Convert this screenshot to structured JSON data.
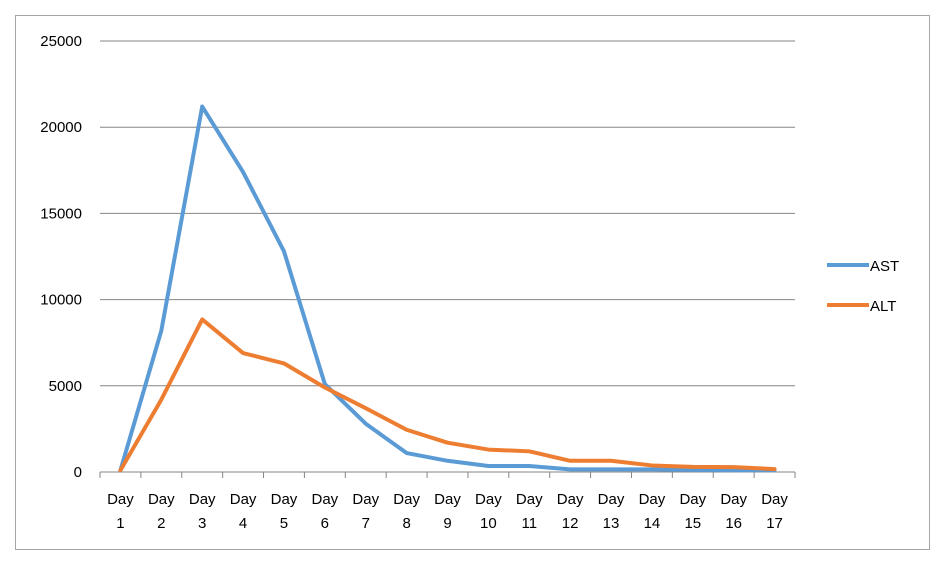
{
  "chart_data": {
    "type": "line",
    "categories": [
      [
        "Day",
        "1"
      ],
      [
        "Day",
        "2"
      ],
      [
        "Day",
        "3"
      ],
      [
        "Day",
        "4"
      ],
      [
        "Day",
        "5"
      ],
      [
        "Day",
        "6"
      ],
      [
        "Day",
        "7"
      ],
      [
        "Day",
        "8"
      ],
      [
        "Day",
        "9"
      ],
      [
        "Day",
        "10"
      ],
      [
        "Day",
        "11"
      ],
      [
        "Day",
        "12"
      ],
      [
        "Day",
        "13"
      ],
      [
        "Day",
        "14"
      ],
      [
        "Day",
        "15"
      ],
      [
        "Day",
        "16"
      ],
      [
        "Day",
        "17"
      ]
    ],
    "series": [
      {
        "name": "AST",
        "color": "#5b9bd5",
        "values": [
          100,
          8200,
          21200,
          17400,
          12800,
          5100,
          2800,
          1100,
          650,
          350,
          350,
          150,
          150,
          150,
          120,
          100,
          100
        ]
      },
      {
        "name": "ALT",
        "color": "#ed7d31",
        "values": [
          100,
          4200,
          8850,
          6900,
          6300,
          4900,
          3700,
          2450,
          1700,
          1300,
          1200,
          650,
          650,
          380,
          300,
          280,
          170
        ]
      }
    ],
    "y_ticks": [
      "0",
      "5000",
      "10000",
      "15000",
      "20000",
      "25000"
    ],
    "ylim": [
      0,
      25000
    ],
    "grid": true,
    "legend": "right",
    "gridline_color": "#868686"
  }
}
